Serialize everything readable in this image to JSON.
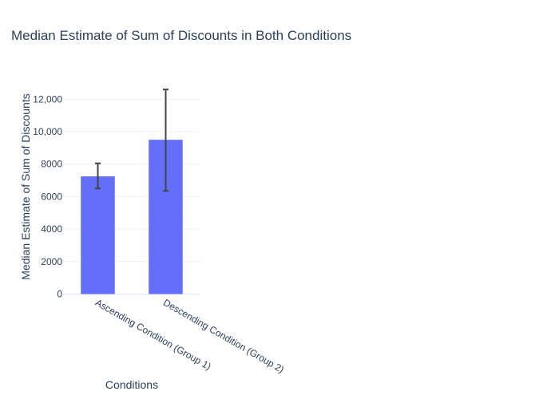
{
  "chart_data": {
    "type": "bar",
    "title": "Median Estimate of Sum of Discounts in Both Conditions",
    "xlabel": "Conditions",
    "ylabel": "Median Estimate of Sum of Discounts",
    "categories": [
      "Ascending Condition (Group 1)",
      "Descending Condition (Group 2)"
    ],
    "values": [
      7250,
      9500
    ],
    "error_low": [
      6500,
      6350
    ],
    "error_high": [
      8050,
      12600
    ],
    "ylim": [
      0,
      13000
    ],
    "yticks": [
      0,
      2000,
      4000,
      6000,
      8000,
      10000,
      12000
    ],
    "ytick_labels": [
      "0",
      "2000",
      "4000",
      "6000",
      "8000",
      "10,000",
      "12,000"
    ],
    "grid": true,
    "bar_color": "#636efa",
    "error_color": "#444444",
    "text_color": "#2a3f5f",
    "grid_color": "#ebf0f8"
  }
}
